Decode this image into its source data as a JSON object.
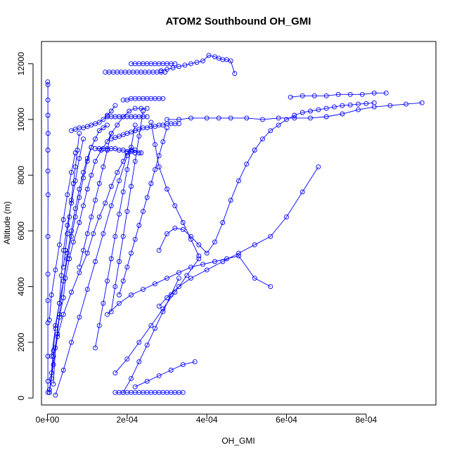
{
  "chart_data": {
    "type": "scatter",
    "title": "ATOM2 Southbound OH_GMI",
    "xlabel": "OH_GMI",
    "ylabel": "Altitude (m)",
    "xlim": [
      -1.5e-05,
      0.000975
    ],
    "ylim": [
      -250,
      12800
    ],
    "x_ticks": [
      0,
      0.0002,
      0.0004,
      0.0006,
      0.0008
    ],
    "x_tick_labels": [
      "0e+00",
      "2e-04",
      "4e-04",
      "6e-04",
      "8e-04"
    ],
    "y_ticks": [
      0,
      2000,
      4000,
      6000,
      8000,
      10000,
      12000
    ],
    "y_tick_labels": [
      "0",
      "2000",
      "4000",
      "6000",
      "8000",
      "10000",
      "12000"
    ],
    "grid": false,
    "legend": "none",
    "line_color": "#0000ff",
    "marker": "open-circle",
    "series": [
      {
        "x": [
          5e-07,
          1e-06,
          1e-06,
          1e-06,
          1.5e-06,
          1e-06,
          1e-06,
          1.5e-06,
          1e-06,
          1e-06,
          1e-06,
          1e-06,
          1e-06,
          1e-06,
          1e-06
        ],
        "y": [
          11350,
          11250,
          10700,
          10150,
          9500,
          8900,
          8150,
          7300,
          5800,
          4450,
          3500,
          2700,
          1500,
          600,
          200
        ]
      },
      {
        "x": [
          5e-06,
          1e-05,
          1.5e-05,
          2.5e-05,
          3e-05,
          4e-05,
          4.5e-05,
          5.5e-05,
          6.5e-05,
          8e-05,
          9e-05,
          0.0001,
          0.00011,
          0.00012,
          0.000135,
          0.00015,
          0.00016,
          0.000175,
          0.00019,
          0.000205,
          0.00022,
          0.000235,
          0.00025
        ],
        "y": [
          200,
          700,
          1500,
          2300,
          2900,
          3600,
          4300,
          5000,
          5600,
          6300,
          6900,
          7500,
          8000,
          8500,
          8900,
          9200,
          9500,
          9800,
          10100,
          10300,
          10400,
          10400,
          10400
        ]
      },
      {
        "x": [
          0.00017,
          0.00018,
          0.00019,
          0.0002,
          0.00021,
          0.00022,
          0.00023,
          0.00024,
          0.00025,
          0.00026,
          0.00027,
          0.00028,
          0.00029,
          0.0003,
          0.00031,
          0.00032,
          0.00033,
          0.00034
        ],
        "y": [
          200,
          200,
          200,
          200,
          200,
          200,
          200,
          200,
          200,
          200,
          200,
          200,
          200,
          200,
          200,
          200,
          200,
          200
        ]
      },
      {
        "x": [
          5e-06,
          1.5e-05,
          2.5e-05,
          4e-05,
          6e-05,
          8e-05,
          0.0001,
          0.000115,
          0.00013,
          0.000145,
          0.00016,
          0.000175,
          0.00019,
          0.0002,
          0.00021,
          0.00022,
          0.00023,
          0.000235
        ],
        "y": [
          300,
          1200,
          2200,
          3000,
          3800,
          4500,
          5200,
          5900,
          6500,
          7000,
          7600,
          8100,
          8500,
          8800,
          8900,
          8900,
          8800,
          8800
        ]
      },
      {
        "x": [
          1.5e-05,
          2e-05,
          3e-05,
          4e-05,
          5e-05,
          6e-05,
          7e-05,
          8e-05,
          9e-05,
          0.0001,
          0.00011,
          0.00012,
          0.00013,
          0.00014,
          0.00015
        ],
        "y": [
          500,
          1800,
          3000,
          4200,
          5200,
          6000,
          6800,
          7500,
          8100,
          8600,
          9000,
          9300,
          9600,
          9700,
          9800
        ]
      },
      {
        "x": [
          5e-06,
          1e-05,
          1.5e-05,
          2e-05,
          3e-05,
          3.5e-05,
          4e-05,
          5e-05,
          6e-05,
          7e-05,
          8e-05,
          9e-05
        ],
        "y": [
          200,
          900,
          1700,
          2600,
          3400,
          4400,
          5300,
          6200,
          7000,
          7800,
          8600,
          9300
        ]
      },
      {
        "x": [
          2e-05,
          4e-05,
          6e-05,
          8e-05,
          0.0001,
          0.00012,
          0.00014,
          0.00016,
          0.00018,
          0.0002
        ],
        "y": [
          100,
          1000,
          2000,
          2900,
          3900,
          4900,
          5900,
          6900,
          7800,
          8700
        ]
      },
      {
        "x": [
          0.000145,
          0.000155,
          0.000165,
          0.000175,
          0.000185,
          0.000195,
          0.000205,
          0.000215,
          0.000225,
          0.000235,
          0.000245,
          0.000255,
          0.000265,
          0.000275,
          0.000285,
          0.000295
        ],
        "y": [
          11700,
          11700,
          11700,
          11700,
          11700,
          11700,
          11700,
          11700,
          11700,
          11700,
          11700,
          11700,
          11700,
          11700,
          11700,
          11700
        ]
      },
      {
        "x": [
          0.00021,
          0.00022,
          0.00023,
          0.00024,
          0.00025,
          0.00026,
          0.00027,
          0.00028,
          0.00029,
          0.0003,
          0.00031,
          0.00032
        ],
        "y": [
          12000,
          12000,
          12000,
          12000,
          12000,
          12000,
          12000,
          12000,
          12000,
          12000,
          12000,
          12000
        ]
      },
      {
        "x": [
          0.000285,
          0.0003,
          0.000315,
          0.00033,
          0.000345,
          0.00036,
          0.000375,
          0.00039,
          0.000405,
          0.00042,
          0.00043,
          0.00044,
          0.00045,
          0.00046,
          0.00047
        ],
        "y": [
          11750,
          11800,
          11850,
          11900,
          11950,
          12000,
          12050,
          12100,
          12300,
          12250,
          12200,
          12150,
          12150,
          12100,
          11650
        ]
      },
      {
        "x": [
          0.00015,
          0.00016,
          0.00017,
          0.00018,
          0.00019,
          0.0002,
          0.00021,
          0.00022,
          0.00023,
          0.00024,
          0.00025
        ],
        "y": [
          10100,
          10100,
          10100,
          10100,
          10100,
          10100,
          10100,
          10100,
          10100,
          10100,
          10100
        ]
      },
      {
        "x": [
          0.0003,
          0.00033,
          0.00036,
          0.0004,
          0.00043,
          0.00046,
          0.0005,
          0.00054,
          0.00058,
          0.00062,
          0.00066,
          0.0007,
          0.00074,
          0.00078,
          0.00082,
          0.00086,
          0.0009,
          0.00094
        ],
        "y": [
          10000,
          10000,
          10050,
          10050,
          10050,
          10050,
          10050,
          10000,
          10050,
          10050,
          10050,
          10100,
          10200,
          10350,
          10450,
          10500,
          10550,
          10600
        ]
      },
      {
        "x": [
          0.00061,
          0.00064,
          0.00067,
          0.0007,
          0.00073,
          0.00076,
          0.00079,
          0.00082,
          0.00085
        ],
        "y": [
          10800,
          10850,
          10850,
          10850,
          10900,
          10900,
          10900,
          10950,
          10950
        ]
      },
      {
        "x": [
          0.00028,
          0.0003,
          0.00032,
          0.00034,
          0.00036,
          0.00038,
          0.0004,
          0.00042,
          0.00044,
          0.00046,
          0.00048,
          0.0005,
          0.00052,
          0.00054,
          0.00056,
          0.00058,
          0.0006,
          0.00062,
          0.00064,
          0.00066,
          0.00068,
          0.0007,
          0.00072,
          0.00074,
          0.00076,
          0.00078,
          0.0008,
          0.00082
        ],
        "y": [
          5300,
          5900,
          6100,
          6050,
          5800,
          5500,
          5200,
          5600,
          6300,
          7100,
          7800,
          8400,
          8900,
          9300,
          9600,
          9800,
          10000,
          10150,
          10250,
          10300,
          10350,
          10400,
          10450,
          10500,
          10520,
          10550,
          10570,
          10600
        ]
      },
      {
        "x": [
          0.00028,
          0.0003,
          0.00033,
          0.00036,
          0.0004,
          0.00044,
          0.00048,
          0.00052,
          0.00056,
          0.0006,
          0.00064,
          0.00068
        ],
        "y": [
          3300,
          3600,
          4000,
          4300,
          4600,
          4900,
          5200,
          5500,
          5800,
          6500,
          7400,
          8300
        ]
      },
      {
        "x": [
          0.00015,
          0.00018,
          0.00021,
          0.00024,
          0.00027,
          0.0003,
          0.00033,
          0.00036,
          0.00039,
          0.00042,
          0.00045,
          0.00048,
          0.00052,
          0.00056
        ],
        "y": [
          3000,
          3400,
          3700,
          3900,
          4100,
          4300,
          4500,
          4700,
          4800,
          4900,
          5000,
          5100,
          4300,
          4000
        ]
      },
      {
        "x": [
          0.00017,
          0.0002,
          0.00023,
          0.00026,
          0.00029,
          0.00032,
          0.00035,
          0.00038
        ],
        "y": [
          900,
          1400,
          2000,
          2600,
          3200,
          3800,
          4400,
          5000
        ]
      },
      {
        "x": [
          0.00019,
          0.00021,
          0.00023,
          0.00025,
          0.00027,
          0.00029,
          0.00031,
          0.00033
        ],
        "y": [
          200,
          700,
          1300,
          1900,
          2500,
          3100,
          3700,
          4300
        ]
      },
      {
        "x": [
          0.00022,
          0.00025,
          0.00028,
          0.00031,
          0.00034,
          0.00037
        ],
        "y": [
          400,
          600,
          800,
          1000,
          1200,
          1300
        ]
      },
      {
        "x": [
          0.00016,
          0.00017,
          0.00018,
          0.00019,
          0.0002,
          0.00021,
          0.00022,
          0.00023,
          0.00024,
          0.00025,
          0.00026,
          0.00027,
          0.00028,
          0.00029,
          0.0003,
          0.00031,
          0.00032,
          0.00033
        ],
        "y": [
          9300,
          9350,
          9400,
          9450,
          9500,
          9550,
          9600,
          9650,
          9700,
          9700,
          9750,
          9750,
          9800,
          9800,
          9850,
          9850,
          9850,
          9850
        ]
      },
      {
        "x": [
          0.00012,
          0.00013,
          0.00014,
          0.00015,
          0.00016,
          0.00017,
          0.00018,
          0.00019,
          0.0002,
          0.00021,
          0.00022
        ],
        "y": [
          8950,
          8950,
          8950,
          8950,
          8950,
          8950,
          8900,
          8900,
          8850,
          8850,
          8800
        ]
      },
      {
        "x": [
          0.00019,
          0.0002,
          0.00021,
          0.00022,
          0.00023,
          0.00024,
          0.00025,
          0.00026,
          0.00027,
          0.00028,
          0.00029
        ],
        "y": [
          10700,
          10700,
          10750,
          10750,
          10750,
          10750,
          10750,
          10750,
          10750,
          10750,
          10750
        ]
      },
      {
        "x": [
          6e-05,
          7e-05,
          8e-05,
          9e-05,
          0.0001,
          0.00011,
          0.00012,
          0.00013,
          0.00014,
          0.00015,
          0.00016,
          0.00017
        ],
        "y": [
          9600,
          9650,
          9700,
          9700,
          9750,
          9800,
          9850,
          9900,
          10000,
          10150,
          10300,
          10500
        ]
      },
      {
        "x": [
          0.0003,
          0.00029,
          0.00028,
          0.00027,
          0.00026,
          0.00025,
          0.00024,
          0.00023,
          0.00022,
          0.00021,
          0.0002,
          0.00019,
          0.00018
        ],
        "y": [
          9700,
          9200,
          8700,
          8200,
          7700,
          7200,
          6700,
          6200,
          5700,
          5200,
          4700,
          4200,
          3700
        ]
      },
      {
        "x": [
          0.00022,
          0.00021,
          0.0002,
          0.00019,
          0.00018,
          0.00017,
          0.00016,
          0.00015,
          0.00014,
          0.00013,
          0.00012
        ],
        "y": [
          9800,
          9000,
          8200,
          7400,
          6600,
          5800,
          5000,
          4200,
          3400,
          2600,
          1800
        ]
      },
      {
        "x": [
          0.00024,
          0.00023,
          0.00022,
          0.00021,
          0.0002,
          0.00019,
          0.00018,
          0.00017,
          0.00016
        ],
        "y": [
          10300,
          9400,
          8500,
          7600,
          6700,
          5800,
          4900,
          4000,
          3100
        ]
      },
      {
        "x": [
          0.00026,
          0.00027,
          0.00028,
          0.0003,
          0.00032,
          0.00034,
          0.00036,
          0.00038
        ],
        "y": [
          9900,
          9100,
          8300,
          7500,
          6900,
          6300,
          5700,
          5100
        ]
      },
      {
        "x": [
          1e-05,
          2e-05,
          3e-05,
          4e-05,
          5e-05,
          6e-05,
          7e-05,
          8e-05,
          9e-05,
          0.0001,
          0.00011
        ],
        "y": [
          1500,
          2500,
          3400,
          4200,
          5000,
          5800,
          6500,
          7200,
          7900,
          8500,
          9000
        ]
      },
      {
        "x": [
          5e-06,
          1e-05,
          2e-05,
          3e-05,
          4e-05,
          5e-05,
          6e-05,
          7e-05
        ],
        "y": [
          2800,
          3700,
          4600,
          5500,
          6400,
          7300,
          8100,
          8800
        ]
      },
      {
        "x": [
          4e-05,
          4.5e-05,
          5e-05,
          5.5e-05,
          6e-05,
          6.5e-05,
          7e-05,
          7.5e-05,
          8e-05
        ],
        "y": [
          4700,
          5300,
          5900,
          6500,
          7100,
          7700,
          8300,
          8900,
          9500
        ]
      },
      {
        "x": [
          8e-05,
          9e-05,
          0.0001,
          0.00011,
          0.00012,
          0.00013,
          0.00014,
          0.00015,
          0.00016
        ],
        "y": [
          4700,
          5300,
          5900,
          6500,
          7100,
          7700,
          8300,
          8900,
          9500
        ]
      }
    ]
  }
}
